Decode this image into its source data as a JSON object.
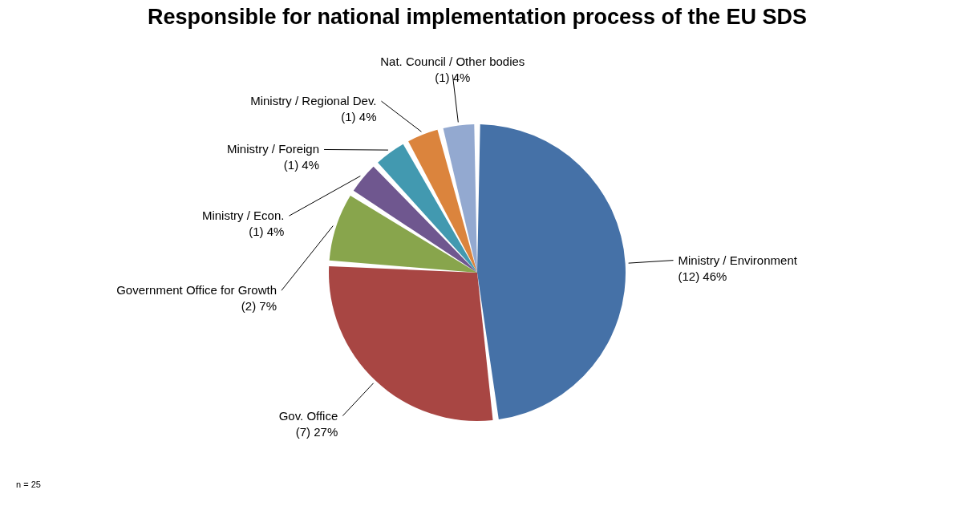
{
  "chart_data": {
    "type": "pie",
    "title": "Responsible for national implementation process of the EU SDS",
    "categories": [
      "Ministry / Environment",
      "Gov. Office",
      "Government Office for Growth",
      "Ministry / Econ.",
      "Ministry / Foreign",
      "Ministry / Regional Dev.",
      "Nat. Council / Other bodies"
    ],
    "values": [
      12,
      7,
      2,
      1,
      1,
      1,
      1
    ],
    "value_labels": [
      "(12) 46%",
      "(7) 27%",
      "(2) 7%",
      "(1) 4%",
      "(1) 4%",
      "(1) 4%",
      "(1)  4%"
    ],
    "colors": [
      "#4571a7",
      "#a84643",
      "#88a54c",
      "#6f578f",
      "#4299b0",
      "#db843d",
      "#93a9d0"
    ],
    "annotations": [
      "n = 25"
    ]
  }
}
